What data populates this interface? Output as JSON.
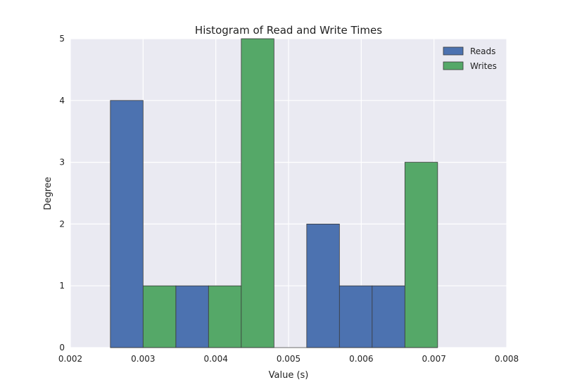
{
  "chart_data": {
    "type": "bar",
    "title": "Histogram of Read and Write Times",
    "xlabel": "Value (s)",
    "ylabel": "Degree",
    "xlim": [
      0.002,
      0.008
    ],
    "ylim": [
      0,
      5
    ],
    "xticks": [
      "0.002",
      "0.003",
      "0.004",
      "0.005",
      "0.006",
      "0.007",
      "0.008"
    ],
    "yticks": [
      "0",
      "1",
      "2",
      "3",
      "4",
      "5"
    ],
    "grid": true,
    "legend_position": "top-right",
    "series": [
      {
        "name": "Reads",
        "color": "#4c72b0",
        "bins": [
          {
            "x0": 0.00255,
            "x1": 0.003,
            "value": 4
          },
          {
            "x0": 0.00345,
            "x1": 0.0039,
            "value": 1
          },
          {
            "x0": 0.00525,
            "x1": 0.0057,
            "value": 2
          },
          {
            "x0": 0.0057,
            "x1": 0.00615,
            "value": 1
          },
          {
            "x0": 0.00615,
            "x1": 0.0066,
            "value": 1
          }
        ]
      },
      {
        "name": "Writes",
        "color": "#55a868",
        "bins": [
          {
            "x0": 0.003,
            "x1": 0.00345,
            "value": 1
          },
          {
            "x0": 0.0039,
            "x1": 0.00435,
            "value": 1
          },
          {
            "x0": 0.00435,
            "x1": 0.0048,
            "value": 5
          },
          {
            "x0": 0.0066,
            "x1": 0.00705,
            "value": 3
          }
        ]
      }
    ]
  }
}
